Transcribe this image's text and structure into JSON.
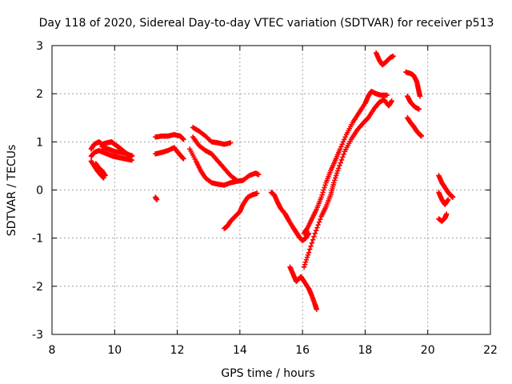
{
  "chart_data": {
    "type": "scatter",
    "title": "Day 118 of 2020, Sidereal Day-to-day VTEC variation (SDTVAR) for receiver p513",
    "xlabel": "GPS time / hours",
    "ylabel": "SDTVAR / TECUs",
    "xlim": [
      8,
      22
    ],
    "ylim": [
      -3,
      3
    ],
    "xticks": [
      8,
      10,
      12,
      14,
      16,
      18,
      20,
      22
    ],
    "yticks": [
      -3,
      -2,
      -1,
      0,
      1,
      2,
      3
    ],
    "grid": true,
    "marker": "+",
    "series": [
      {
        "name": "SDTVAR",
        "color": "#ff0000",
        "segments": [
          [
            [
              9.25,
              0.85
            ],
            [
              9.35,
              0.95
            ],
            [
              9.5,
              1.0
            ],
            [
              9.6,
              0.95
            ],
            [
              9.75,
              0.98
            ],
            [
              9.9,
              1.0
            ],
            [
              10.0,
              0.95
            ],
            [
              10.15,
              0.88
            ],
            [
              10.3,
              0.8
            ],
            [
              10.45,
              0.72
            ],
            [
              10.55,
              0.72
            ]
          ],
          [
            [
              9.25,
              0.7
            ],
            [
              9.35,
              0.78
            ],
            [
              9.5,
              0.82
            ],
            [
              9.65,
              0.78
            ],
            [
              9.8,
              0.74
            ],
            [
              9.95,
              0.7
            ],
            [
              10.1,
              0.68
            ],
            [
              10.25,
              0.66
            ],
            [
              10.4,
              0.64
            ],
            [
              10.55,
              0.62
            ]
          ],
          [
            [
              9.25,
              0.6
            ],
            [
              9.35,
              0.5
            ],
            [
              9.45,
              0.4
            ],
            [
              9.55,
              0.32
            ],
            [
              9.65,
              0.25
            ]
          ],
          [
            [
              9.4,
              0.55
            ],
            [
              9.5,
              0.45
            ],
            [
              9.6,
              0.4
            ],
            [
              9.7,
              0.3
            ]
          ],
          [
            [
              9.6,
              0.9
            ],
            [
              9.8,
              0.85
            ],
            [
              10.0,
              0.8
            ],
            [
              10.2,
              0.78
            ],
            [
              10.4,
              0.75
            ],
            [
              10.55,
              0.7
            ]
          ],
          [
            [
              11.3,
              -0.15
            ],
            [
              11.35,
              -0.2
            ]
          ],
          [
            [
              11.3,
              1.1
            ],
            [
              11.5,
              1.12
            ],
            [
              11.7,
              1.12
            ],
            [
              11.9,
              1.15
            ],
            [
              12.1,
              1.12
            ],
            [
              12.2,
              1.05
            ]
          ],
          [
            [
              11.3,
              0.75
            ],
            [
              11.5,
              0.78
            ],
            [
              11.7,
              0.82
            ],
            [
              11.9,
              0.88
            ],
            [
              12.0,
              0.8
            ],
            [
              12.1,
              0.72
            ],
            [
              12.2,
              0.65
            ]
          ],
          [
            [
              12.5,
              1.3
            ],
            [
              12.7,
              1.22
            ],
            [
              12.9,
              1.12
            ],
            [
              13.1,
              1.0
            ],
            [
              13.3,
              0.98
            ],
            [
              13.5,
              0.95
            ],
            [
              13.7,
              0.98
            ]
          ],
          [
            [
              12.5,
              1.1
            ],
            [
              12.7,
              0.92
            ],
            [
              12.9,
              0.82
            ],
            [
              13.1,
              0.75
            ],
            [
              13.3,
              0.6
            ],
            [
              13.5,
              0.45
            ],
            [
              13.7,
              0.3
            ],
            [
              13.9,
              0.2
            ]
          ],
          [
            [
              12.4,
              0.85
            ],
            [
              12.6,
              0.6
            ],
            [
              12.75,
              0.4
            ],
            [
              12.9,
              0.25
            ],
            [
              13.1,
              0.15
            ],
            [
              13.3,
              0.12
            ],
            [
              13.5,
              0.1
            ],
            [
              13.7,
              0.15
            ],
            [
              13.9,
              0.18
            ],
            [
              14.1,
              0.2
            ],
            [
              14.3,
              0.3
            ],
            [
              14.5,
              0.35
            ],
            [
              14.6,
              0.32
            ]
          ],
          [
            [
              13.5,
              -0.8
            ],
            [
              13.6,
              -0.75
            ],
            [
              13.7,
              -0.65
            ],
            [
              13.85,
              -0.55
            ],
            [
              14.0,
              -0.45
            ],
            [
              14.1,
              -0.3
            ],
            [
              14.25,
              -0.15
            ],
            [
              14.4,
              -0.1
            ],
            [
              14.55,
              -0.07
            ]
          ],
          [
            [
              15.0,
              -0.05
            ],
            [
              15.1,
              -0.1
            ],
            [
              15.2,
              -0.25
            ],
            [
              15.3,
              -0.38
            ],
            [
              15.45,
              -0.5
            ],
            [
              15.55,
              -0.62
            ],
            [
              15.7,
              -0.78
            ],
            [
              15.8,
              -0.88
            ],
            [
              15.9,
              -0.98
            ],
            [
              16.0,
              -1.05
            ],
            [
              16.1,
              -1.0
            ],
            [
              16.2,
              -0.9
            ]
          ],
          [
            [
              16.05,
              -0.9
            ],
            [
              16.15,
              -0.8
            ],
            [
              16.3,
              -0.6
            ],
            [
              16.45,
              -0.4
            ],
            [
              16.6,
              -0.15
            ],
            [
              16.75,
              0.15
            ],
            [
              16.9,
              0.4
            ],
            [
              17.05,
              0.62
            ],
            [
              17.2,
              0.85
            ],
            [
              17.4,
              1.15
            ],
            [
              17.6,
              1.4
            ],
            [
              17.8,
              1.6
            ],
            [
              18.0,
              1.8
            ],
            [
              18.1,
              1.95
            ],
            [
              18.2,
              2.05
            ],
            [
              18.35,
              2.0
            ],
            [
              18.5,
              1.97
            ],
            [
              18.7,
              1.97
            ]
          ],
          [
            [
              15.6,
              -1.6
            ],
            [
              15.7,
              -1.75
            ],
            [
              15.8,
              -1.9
            ],
            [
              15.95,
              -1.8
            ],
            [
              16.05,
              -1.9
            ],
            [
              16.2,
              -2.05
            ],
            [
              16.3,
              -2.2
            ],
            [
              16.4,
              -2.38
            ],
            [
              16.45,
              -2.48
            ]
          ],
          [
            [
              16.05,
              -1.6
            ],
            [
              16.2,
              -1.3
            ],
            [
              16.4,
              -0.9
            ],
            [
              16.6,
              -0.55
            ],
            [
              16.75,
              -0.35
            ],
            [
              16.9,
              -0.1
            ],
            [
              17.0,
              0.15
            ],
            [
              17.15,
              0.45
            ],
            [
              17.35,
              0.8
            ],
            [
              17.55,
              1.05
            ],
            [
              17.75,
              1.25
            ],
            [
              17.95,
              1.4
            ],
            [
              18.1,
              1.5
            ],
            [
              18.3,
              1.7
            ],
            [
              18.45,
              1.82
            ],
            [
              18.6,
              1.88
            ],
            [
              18.75,
              1.75
            ],
            [
              18.85,
              1.85
            ]
          ],
          [
            [
              18.35,
              2.85
            ],
            [
              18.45,
              2.7
            ],
            [
              18.55,
              2.6
            ],
            [
              18.65,
              2.65
            ],
            [
              18.8,
              2.75
            ],
            [
              18.9,
              2.78
            ]
          ],
          [
            [
              19.3,
              2.45
            ],
            [
              19.45,
              2.42
            ],
            [
              19.55,
              2.38
            ],
            [
              19.65,
              2.25
            ],
            [
              19.7,
              2.1
            ],
            [
              19.75,
              1.95
            ]
          ],
          [
            [
              19.35,
              1.95
            ],
            [
              19.45,
              1.82
            ],
            [
              19.6,
              1.72
            ],
            [
              19.72,
              1.68
            ]
          ],
          [
            [
              19.35,
              1.5
            ],
            [
              19.45,
              1.4
            ],
            [
              19.55,
              1.32
            ],
            [
              19.65,
              1.22
            ],
            [
              19.75,
              1.15
            ],
            [
              19.8,
              1.12
            ]
          ],
          [
            [
              20.35,
              0.3
            ],
            [
              20.45,
              0.15
            ],
            [
              20.55,
              0.05
            ],
            [
              20.65,
              -0.05
            ],
            [
              20.75,
              -0.12
            ],
            [
              20.8,
              -0.15
            ]
          ],
          [
            [
              20.35,
              -0.05
            ],
            [
              20.45,
              -0.2
            ],
            [
              20.55,
              -0.3
            ],
            [
              20.65,
              -0.2
            ]
          ],
          [
            [
              20.35,
              -0.6
            ],
            [
              20.45,
              -0.65
            ],
            [
              20.55,
              -0.58
            ],
            [
              20.6,
              -0.5
            ]
          ]
        ]
      }
    ]
  }
}
